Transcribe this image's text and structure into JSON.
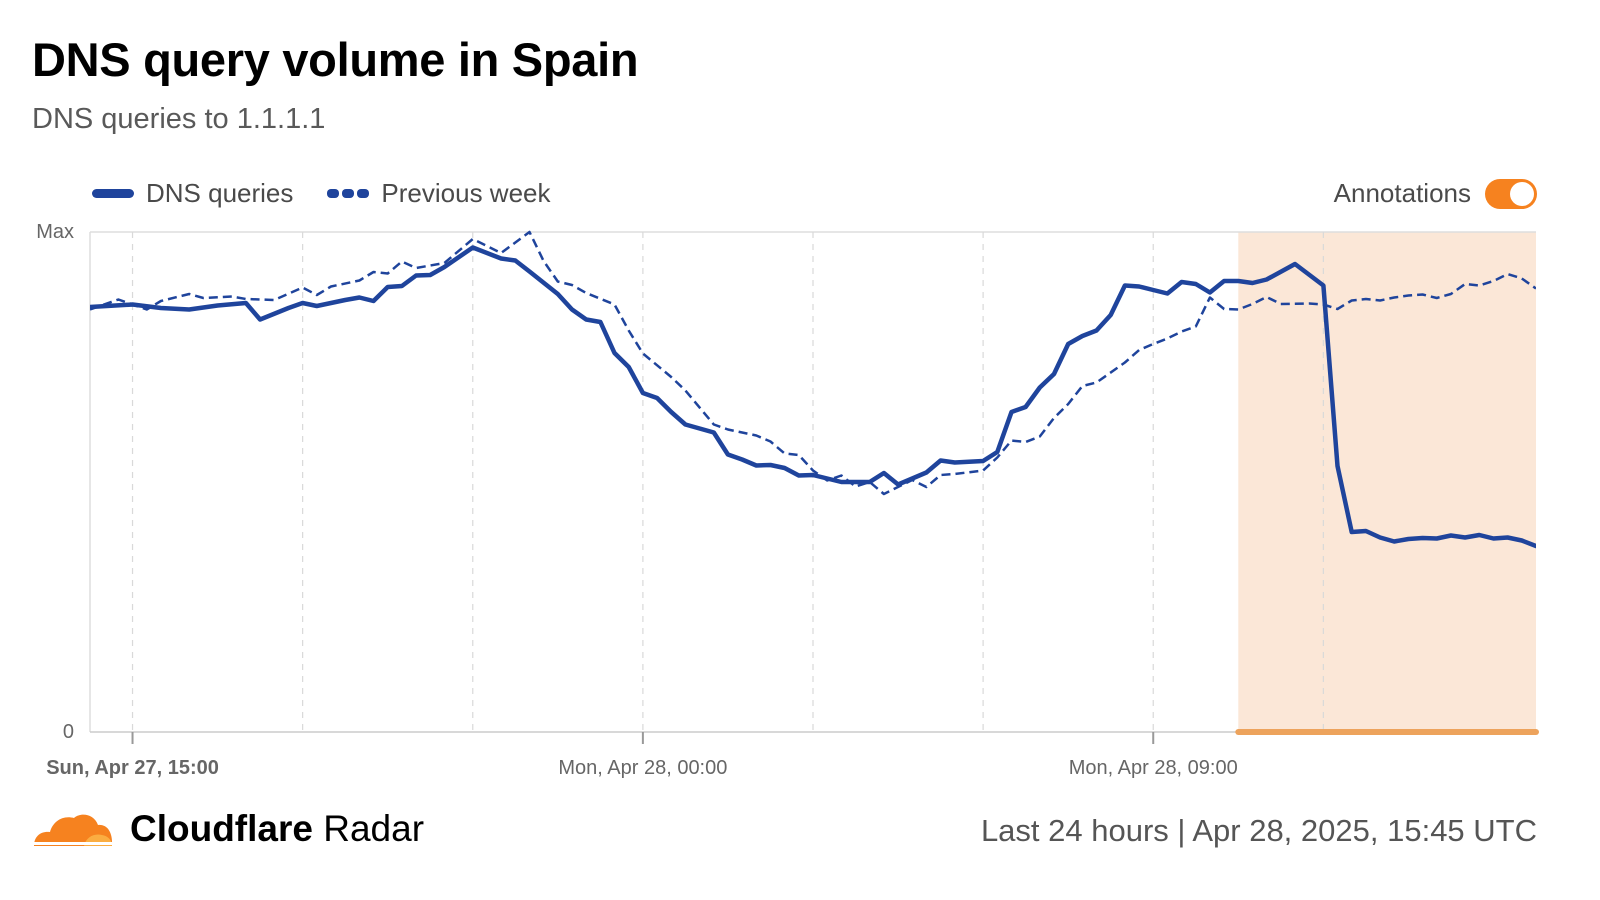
{
  "header": {
    "title": "DNS query volume in Spain",
    "subtitle": "DNS queries to 1.1.1.1"
  },
  "legend": {
    "items": [
      {
        "label": "DNS queries",
        "style": "solid"
      },
      {
        "label": "Previous week",
        "style": "dashed"
      }
    ],
    "annotations_label": "Annotations",
    "annotations_enabled": true
  },
  "colors": {
    "series": "#1f449c",
    "accent": "#f6821f",
    "highlight_fill": "#fbe7d7",
    "highlight_bar": "#eda35c"
  },
  "footer": {
    "brand_bold": "Cloudflare",
    "brand_regular": "Radar",
    "timerange": "Last 24 hours | Apr 28, 2025, 15:45 UTC"
  },
  "chart_data": {
    "type": "line",
    "x_range": [
      "2025-04-27T14:15",
      "2025-04-28T15:45"
    ],
    "y_tick_labels": [
      "Max",
      "0"
    ],
    "ylim": [
      0,
      100
    ],
    "x_tick_labels": [
      {
        "label": "Sun, Apr 27, 15:00",
        "t": "2025-04-27T15:00"
      },
      {
        "label": "Mon, Apr 28, 00:00",
        "t": "2025-04-28T00:00"
      },
      {
        "label": "Mon, Apr 28, 09:00",
        "t": "2025-04-28T09:00"
      }
    ],
    "grid_times": [
      "2025-04-27T15:00",
      "2025-04-27T18:00",
      "2025-04-27T21:00",
      "2025-04-28T00:00",
      "2025-04-28T03:00",
      "2025-04-28T06:00",
      "2025-04-28T09:00",
      "2025-04-28T12:00"
    ],
    "annotation_range": [
      "2025-04-28T10:30",
      "2025-04-28T15:45"
    ],
    "series": [
      {
        "name": "DNS queries",
        "style": "solid",
        "points": [
          [
            "2025-04-27T14:15",
            85
          ],
          [
            "2025-04-27T15:00",
            85.5
          ],
          [
            "2025-04-27T15:30",
            84.8
          ],
          [
            "2025-04-27T16:00",
            84.5
          ],
          [
            "2025-04-27T16:30",
            85.3
          ],
          [
            "2025-04-27T17:00",
            85.8
          ],
          [
            "2025-04-27T17:15",
            82.5
          ],
          [
            "2025-04-27T17:45",
            84.8
          ],
          [
            "2025-04-27T18:00",
            85.8
          ],
          [
            "2025-04-27T18:15",
            85.2
          ],
          [
            "2025-04-27T18:45",
            86.4
          ],
          [
            "2025-04-27T19:00",
            86.9
          ],
          [
            "2025-04-27T19:15",
            86.2
          ],
          [
            "2025-04-27T19:30",
            89
          ],
          [
            "2025-04-27T19:45",
            89.2
          ],
          [
            "2025-04-27T20:00",
            91.3
          ],
          [
            "2025-04-27T20:15",
            91.4
          ],
          [
            "2025-04-27T20:30",
            93
          ],
          [
            "2025-04-27T21:00",
            96.9
          ],
          [
            "2025-04-27T21:30",
            94.7
          ],
          [
            "2025-04-27T21:45",
            94.3
          ],
          [
            "2025-04-27T22:00",
            92.1
          ],
          [
            "2025-04-27T22:30",
            87.6
          ],
          [
            "2025-04-27T22:45",
            84.5
          ],
          [
            "2025-04-27T23:00",
            82.5
          ],
          [
            "2025-04-27T23:15",
            82
          ],
          [
            "2025-04-27T23:30",
            75.8
          ],
          [
            "2025-04-27T23:45",
            73
          ],
          [
            "2025-04-28T00:00",
            67.8
          ],
          [
            "2025-04-28T00:15",
            66.8
          ],
          [
            "2025-04-28T00:30",
            64
          ],
          [
            "2025-04-28T00:45",
            61.5
          ],
          [
            "2025-04-28T01:00",
            60.7
          ],
          [
            "2025-04-28T01:15",
            59.9
          ],
          [
            "2025-04-28T01:30",
            55.5
          ],
          [
            "2025-04-28T01:45",
            54.5
          ],
          [
            "2025-04-28T02:00",
            53.3
          ],
          [
            "2025-04-28T02:15",
            53.4
          ],
          [
            "2025-04-28T02:30",
            52.8
          ],
          [
            "2025-04-28T02:45",
            51.3
          ],
          [
            "2025-04-28T03:00",
            51.4
          ],
          [
            "2025-04-28T03:30",
            50
          ],
          [
            "2025-04-28T04:00",
            50
          ],
          [
            "2025-04-28T04:15",
            51.8
          ],
          [
            "2025-04-28T04:30",
            49.5
          ],
          [
            "2025-04-28T05:00",
            51.9
          ],
          [
            "2025-04-28T05:15",
            54.3
          ],
          [
            "2025-04-28T05:30",
            53.9
          ],
          [
            "2025-04-28T06:00",
            54.2
          ],
          [
            "2025-04-28T06:15",
            56
          ],
          [
            "2025-04-28T06:30",
            64
          ],
          [
            "2025-04-28T06:45",
            65
          ],
          [
            "2025-04-28T07:00",
            68.9
          ],
          [
            "2025-04-28T07:15",
            71.6
          ],
          [
            "2025-04-28T07:30",
            77.6
          ],
          [
            "2025-04-28T07:45",
            79.2
          ],
          [
            "2025-04-28T08:00",
            80.3
          ],
          [
            "2025-04-28T08:15",
            83.4
          ],
          [
            "2025-04-28T08:30",
            89.3
          ],
          [
            "2025-04-28T08:45",
            89.1
          ],
          [
            "2025-04-28T09:00",
            88.4
          ],
          [
            "2025-04-28T09:15",
            87.7
          ],
          [
            "2025-04-28T09:30",
            90
          ],
          [
            "2025-04-28T09:45",
            89.6
          ],
          [
            "2025-04-28T10:00",
            87.9
          ],
          [
            "2025-04-28T10:15",
            90.2
          ],
          [
            "2025-04-28T10:30",
            90.2
          ],
          [
            "2025-04-28T10:45",
            89.8
          ],
          [
            "2025-04-28T11:00",
            90.5
          ],
          [
            "2025-04-28T11:30",
            93.6
          ],
          [
            "2025-04-28T12:00",
            89.3
          ],
          [
            "2025-04-28T12:15",
            53.2
          ],
          [
            "2025-04-28T12:30",
            40
          ],
          [
            "2025-04-28T12:45",
            40.2
          ],
          [
            "2025-04-28T13:00",
            38.9
          ],
          [
            "2025-04-28T13:15",
            38.1
          ],
          [
            "2025-04-28T13:30",
            38.6
          ],
          [
            "2025-04-28T13:45",
            38.8
          ],
          [
            "2025-04-28T14:00",
            38.7
          ],
          [
            "2025-04-28T14:15",
            39.3
          ],
          [
            "2025-04-28T14:30",
            38.9
          ],
          [
            "2025-04-28T14:45",
            39.4
          ],
          [
            "2025-04-28T15:00",
            38.7
          ],
          [
            "2025-04-28T15:15",
            38.9
          ],
          [
            "2025-04-28T15:30",
            38.3
          ],
          [
            "2025-04-28T15:45",
            37.2
          ]
        ]
      },
      {
        "name": "Previous week",
        "style": "dashed",
        "points": [
          [
            "2025-04-27T14:15",
            84.5
          ],
          [
            "2025-04-27T14:45",
            86.5
          ],
          [
            "2025-04-27T15:15",
            84.5
          ],
          [
            "2025-04-27T15:30",
            86.2
          ],
          [
            "2025-04-27T16:00",
            87.6
          ],
          [
            "2025-04-27T16:15",
            86.8
          ],
          [
            "2025-04-27T16:45",
            87.1
          ],
          [
            "2025-04-27T17:00",
            86.6
          ],
          [
            "2025-04-27T17:30",
            86.4
          ],
          [
            "2025-04-27T18:00",
            88.9
          ],
          [
            "2025-04-27T18:15",
            87.4
          ],
          [
            "2025-04-27T18:30",
            89.1
          ],
          [
            "2025-04-27T19:00",
            90.3
          ],
          [
            "2025-04-27T19:15",
            92
          ],
          [
            "2025-04-27T19:30",
            91.7
          ],
          [
            "2025-04-27T19:45",
            94.1
          ],
          [
            "2025-04-27T20:00",
            92.8
          ],
          [
            "2025-04-27T20:30",
            93.8
          ],
          [
            "2025-04-27T21:00",
            98.6
          ],
          [
            "2025-04-27T21:30",
            95.8
          ],
          [
            "2025-04-27T22:00",
            100
          ],
          [
            "2025-04-27T22:15",
            94.2
          ],
          [
            "2025-04-27T22:30",
            90.1
          ],
          [
            "2025-04-27T22:45",
            89.4
          ],
          [
            "2025-04-27T23:00",
            87.8
          ],
          [
            "2025-04-27T23:30",
            85.5
          ],
          [
            "2025-04-27T23:45",
            80.3
          ],
          [
            "2025-04-28T00:00",
            75.7
          ],
          [
            "2025-04-28T00:30",
            71
          ],
          [
            "2025-04-28T00:45",
            68.3
          ],
          [
            "2025-04-28T01:15",
            61.5
          ],
          [
            "2025-04-28T01:30",
            60.5
          ],
          [
            "2025-04-28T02:00",
            59.3
          ],
          [
            "2025-04-28T02:15",
            58.1
          ],
          [
            "2025-04-28T02:30",
            55.7
          ],
          [
            "2025-04-28T02:45",
            55.4
          ],
          [
            "2025-04-28T03:00",
            52.3
          ],
          [
            "2025-04-28T03:15",
            50.3
          ],
          [
            "2025-04-28T03:30",
            51.3
          ],
          [
            "2025-04-28T03:45",
            49.1
          ],
          [
            "2025-04-28T04:00",
            50
          ],
          [
            "2025-04-28T04:15",
            47.6
          ],
          [
            "2025-04-28T04:45",
            50.4
          ],
          [
            "2025-04-28T05:00",
            49
          ],
          [
            "2025-04-28T05:15",
            51.4
          ],
          [
            "2025-04-28T05:30",
            51.6
          ],
          [
            "2025-04-28T06:00",
            52.3
          ],
          [
            "2025-04-28T06:15",
            54.9
          ],
          [
            "2025-04-28T06:30",
            58.3
          ],
          [
            "2025-04-28T06:45",
            58
          ],
          [
            "2025-04-28T07:00",
            59.1
          ],
          [
            "2025-04-28T07:15",
            62.8
          ],
          [
            "2025-04-28T07:30",
            65.6
          ],
          [
            "2025-04-28T07:45",
            69.2
          ],
          [
            "2025-04-28T08:00",
            69.9
          ],
          [
            "2025-04-28T08:30",
            73.9
          ],
          [
            "2025-04-28T08:45",
            76.4
          ],
          [
            "2025-04-28T09:00",
            77.6
          ],
          [
            "2025-04-28T09:15",
            78.7
          ],
          [
            "2025-04-28T09:30",
            80.1
          ],
          [
            "2025-04-28T09:45",
            81.1
          ],
          [
            "2025-04-28T10:00",
            86.9
          ],
          [
            "2025-04-28T10:15",
            84.6
          ],
          [
            "2025-04-28T10:30",
            84.5
          ],
          [
            "2025-04-28T10:45",
            85.6
          ],
          [
            "2025-04-28T11:00",
            87
          ],
          [
            "2025-04-28T11:15",
            85.6
          ],
          [
            "2025-04-28T11:45",
            85.7
          ],
          [
            "2025-04-28T12:00",
            85.5
          ],
          [
            "2025-04-28T12:15",
            84.6
          ],
          [
            "2025-04-28T12:30",
            86.3
          ],
          [
            "2025-04-28T12:45",
            86.6
          ],
          [
            "2025-04-28T13:00",
            86.3
          ],
          [
            "2025-04-28T13:15",
            86.9
          ],
          [
            "2025-04-28T13:30",
            87.3
          ],
          [
            "2025-04-28T13:45",
            87.5
          ],
          [
            "2025-04-28T14:00",
            86.8
          ],
          [
            "2025-04-28T14:15",
            87.6
          ],
          [
            "2025-04-28T14:30",
            89.6
          ],
          [
            "2025-04-28T14:45",
            89.3
          ],
          [
            "2025-04-28T15:00",
            90.2
          ],
          [
            "2025-04-28T15:15",
            91.6
          ],
          [
            "2025-04-28T15:30",
            90.7
          ],
          [
            "2025-04-28T15:45",
            88.7
          ]
        ]
      }
    ]
  }
}
